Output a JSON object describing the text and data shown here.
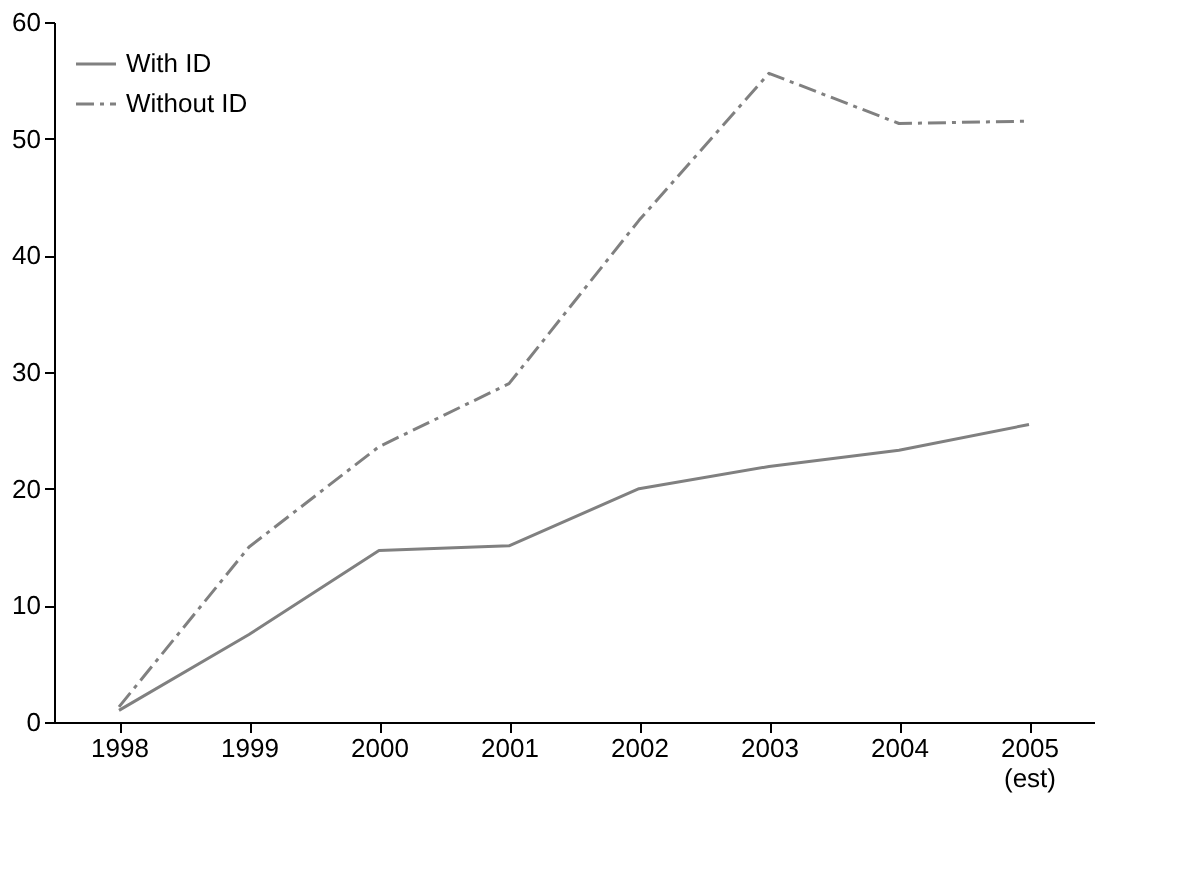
{
  "chart_data": {
    "type": "line",
    "categories": [
      "1998",
      "1999",
      "2000",
      "2001",
      "2002",
      "2003",
      "2004",
      "2005\n(est)"
    ],
    "series": [
      {
        "name": "With ID",
        "color": "#808080",
        "line_style": "solid",
        "values": [
          1,
          7.5,
          14.7,
          15.1,
          20,
          21.9,
          23.3,
          25.5
        ]
      },
      {
        "name": "Without ID",
        "color": "#808080",
        "line_style": "dashed",
        "values": [
          1.3,
          15,
          23.6,
          29,
          43,
          55.6,
          51.3,
          51.5
        ]
      }
    ],
    "ylim": [
      0,
      60
    ],
    "yticks": [
      0,
      10,
      20,
      30,
      40,
      50,
      60
    ],
    "grid": false,
    "legend": "top left",
    "marker": "none"
  }
}
